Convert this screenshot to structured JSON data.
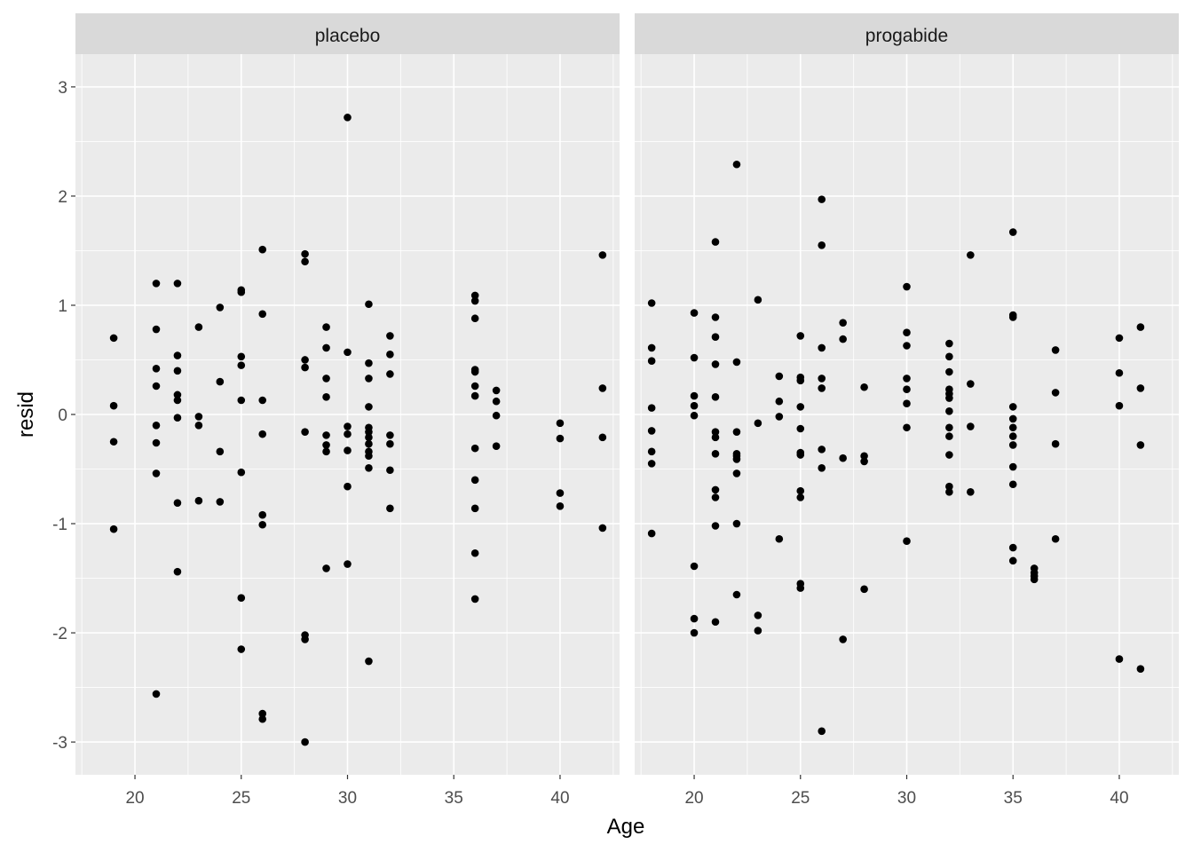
{
  "chart_data": {
    "type": "scatter",
    "facet_by": "treatment",
    "xlabel": "Age",
    "ylabel": "resid",
    "xlim": [
      17.2,
      42.8
    ],
    "ylim": [
      -3.3,
      3.3
    ],
    "x_ticks": [
      20,
      25,
      30,
      35,
      40
    ],
    "y_ticks": [
      -3,
      -2,
      -1,
      0,
      1,
      2,
      3
    ],
    "y_tick_labels": [
      "-3",
      "-2",
      "-1",
      "0",
      "1",
      "2",
      "3"
    ],
    "grid": true,
    "panel_background": "#ebebeb",
    "strip_background": "#d9d9d9",
    "point_color": "#000000",
    "panels": [
      {
        "label": "placebo",
        "points": [
          [
            19,
            0.7
          ],
          [
            19,
            0.08
          ],
          [
            19,
            -0.25
          ],
          [
            19,
            -1.05
          ],
          [
            21,
            1.2
          ],
          [
            21,
            0.78
          ],
          [
            21,
            0.42
          ],
          [
            21,
            0.26
          ],
          [
            21,
            -0.1
          ],
          [
            21,
            -0.26
          ],
          [
            21,
            -0.54
          ],
          [
            21,
            -2.56
          ],
          [
            22,
            1.2
          ],
          [
            22,
            0.54
          ],
          [
            22,
            0.4
          ],
          [
            22,
            0.18
          ],
          [
            22,
            0.13
          ],
          [
            22,
            -0.03
          ],
          [
            22,
            -0.81
          ],
          [
            22,
            -1.44
          ],
          [
            23,
            0.8
          ],
          [
            23,
            -0.02
          ],
          [
            23,
            -0.1
          ],
          [
            23,
            -0.79
          ],
          [
            24,
            0.98
          ],
          [
            24,
            0.3
          ],
          [
            24,
            -0.34
          ],
          [
            24,
            -0.8
          ],
          [
            25,
            1.14
          ],
          [
            25,
            1.12
          ],
          [
            25,
            0.53
          ],
          [
            25,
            0.45
          ],
          [
            25,
            0.13
          ],
          [
            25,
            -0.53
          ],
          [
            25,
            -1.68
          ],
          [
            25,
            -2.15
          ],
          [
            26,
            1.51
          ],
          [
            26,
            0.92
          ],
          [
            26,
            0.13
          ],
          [
            26,
            -0.18
          ],
          [
            26,
            -0.92
          ],
          [
            26,
            -1.01
          ],
          [
            26,
            -2.74
          ],
          [
            26,
            -2.79
          ],
          [
            28,
            1.47
          ],
          [
            28,
            1.4
          ],
          [
            28,
            0.5
          ],
          [
            28,
            0.43
          ],
          [
            28,
            -0.16
          ],
          [
            28,
            -2.02
          ],
          [
            28,
            -2.06
          ],
          [
            28,
            -3.0
          ],
          [
            29,
            0.8
          ],
          [
            29,
            0.61
          ],
          [
            29,
            0.33
          ],
          [
            29,
            0.16
          ],
          [
            29,
            -0.19
          ],
          [
            29,
            -0.28
          ],
          [
            29,
            -0.34
          ],
          [
            29,
            -1.41
          ],
          [
            30,
            2.72
          ],
          [
            30,
            0.57
          ],
          [
            30,
            -0.11
          ],
          [
            30,
            -0.18
          ],
          [
            30,
            -0.33
          ],
          [
            30,
            -0.66
          ],
          [
            30,
            -1.37
          ],
          [
            31,
            1.01
          ],
          [
            31,
            0.47
          ],
          [
            31,
            0.33
          ],
          [
            31,
            0.07
          ],
          [
            31,
            -0.12
          ],
          [
            31,
            -0.16
          ],
          [
            31,
            -0.21
          ],
          [
            31,
            -0.27
          ],
          [
            31,
            -0.34
          ],
          [
            31,
            -0.38
          ],
          [
            31,
            -0.49
          ],
          [
            31,
            -2.26
          ],
          [
            32,
            0.72
          ],
          [
            32,
            0.55
          ],
          [
            32,
            0.37
          ],
          [
            32,
            -0.19
          ],
          [
            32,
            -0.27
          ],
          [
            32,
            -0.51
          ],
          [
            32,
            -0.86
          ],
          [
            36,
            1.09
          ],
          [
            36,
            1.04
          ],
          [
            36,
            0.88
          ],
          [
            36,
            0.41
          ],
          [
            36,
            0.39
          ],
          [
            36,
            0.26
          ],
          [
            36,
            0.17
          ],
          [
            36,
            -0.31
          ],
          [
            36,
            -0.6
          ],
          [
            36,
            -0.86
          ],
          [
            36,
            -1.27
          ],
          [
            36,
            -1.69
          ],
          [
            37,
            0.22
          ],
          [
            37,
            0.12
          ],
          [
            37,
            -0.01
          ],
          [
            37,
            -0.29
          ],
          [
            40,
            -0.08
          ],
          [
            40,
            -0.22
          ],
          [
            40,
            -0.72
          ],
          [
            40,
            -0.84
          ],
          [
            42,
            1.46
          ],
          [
            42,
            0.24
          ],
          [
            42,
            -0.21
          ],
          [
            42,
            -1.04
          ]
        ]
      },
      {
        "label": "progabide",
        "points": [
          [
            18,
            1.02
          ],
          [
            18,
            0.61
          ],
          [
            18,
            0.49
          ],
          [
            18,
            0.06
          ],
          [
            18,
            -0.15
          ],
          [
            18,
            -0.34
          ],
          [
            18,
            -0.45
          ],
          [
            18,
            -1.09
          ],
          [
            20,
            0.93
          ],
          [
            20,
            0.52
          ],
          [
            20,
            0.17
          ],
          [
            20,
            0.08
          ],
          [
            20,
            -0.01
          ],
          [
            20,
            -1.39
          ],
          [
            20,
            -1.87
          ],
          [
            20,
            -2.0
          ],
          [
            21,
            1.58
          ],
          [
            21,
            0.89
          ],
          [
            21,
            0.71
          ],
          [
            21,
            0.46
          ],
          [
            21,
            0.16
          ],
          [
            21,
            -0.16
          ],
          [
            21,
            -0.21
          ],
          [
            21,
            -0.36
          ],
          [
            21,
            -0.69
          ],
          [
            21,
            -0.76
          ],
          [
            21,
            -1.02
          ],
          [
            21,
            -1.9
          ],
          [
            22,
            2.29
          ],
          [
            22,
            0.48
          ],
          [
            22,
            -0.16
          ],
          [
            22,
            -0.36
          ],
          [
            22,
            -0.38
          ],
          [
            22,
            -0.41
          ],
          [
            22,
            -0.54
          ],
          [
            22,
            -1.0
          ],
          [
            22,
            -1.65
          ],
          [
            23,
            1.05
          ],
          [
            23,
            -0.08
          ],
          [
            23,
            -1.84
          ],
          [
            23,
            -1.98
          ],
          [
            24,
            0.35
          ],
          [
            24,
            0.12
          ],
          [
            24,
            -0.02
          ],
          [
            24,
            -1.14
          ],
          [
            25,
            0.72
          ],
          [
            25,
            0.34
          ],
          [
            25,
            0.31
          ],
          [
            25,
            0.07
          ],
          [
            25,
            -0.13
          ],
          [
            25,
            -0.35
          ],
          [
            25,
            -0.37
          ],
          [
            25,
            -0.7
          ],
          [
            25,
            -0.76
          ],
          [
            25,
            -1.55
          ],
          [
            25,
            -1.59
          ],
          [
            26,
            1.97
          ],
          [
            26,
            1.55
          ],
          [
            26,
            0.61
          ],
          [
            26,
            0.33
          ],
          [
            26,
            0.24
          ],
          [
            26,
            -0.32
          ],
          [
            26,
            -0.49
          ],
          [
            26,
            -2.9
          ],
          [
            27,
            0.84
          ],
          [
            27,
            0.69
          ],
          [
            27,
            -0.4
          ],
          [
            27,
            -2.06
          ],
          [
            28,
            0.25
          ],
          [
            28,
            -0.38
          ],
          [
            28,
            -0.43
          ],
          [
            28,
            -1.6
          ],
          [
            30,
            1.17
          ],
          [
            30,
            0.75
          ],
          [
            30,
            0.63
          ],
          [
            30,
            0.33
          ],
          [
            30,
            0.23
          ],
          [
            30,
            0.1
          ],
          [
            30,
            -0.12
          ],
          [
            30,
            -1.16
          ],
          [
            32,
            0.65
          ],
          [
            32,
            0.53
          ],
          [
            32,
            0.39
          ],
          [
            32,
            0.23
          ],
          [
            32,
            0.19
          ],
          [
            32,
            0.15
          ],
          [
            32,
            0.03
          ],
          [
            32,
            -0.12
          ],
          [
            32,
            -0.2
          ],
          [
            32,
            -0.37
          ],
          [
            32,
            -0.66
          ],
          [
            32,
            -0.71
          ],
          [
            33,
            1.46
          ],
          [
            33,
            0.28
          ],
          [
            33,
            -0.11
          ],
          [
            33,
            -0.71
          ],
          [
            35,
            1.67
          ],
          [
            35,
            0.91
          ],
          [
            35,
            0.89
          ],
          [
            35,
            0.07
          ],
          [
            35,
            -0.04
          ],
          [
            35,
            -0.12
          ],
          [
            35,
            -0.2
          ],
          [
            35,
            -0.28
          ],
          [
            35,
            -0.48
          ],
          [
            35,
            -0.64
          ],
          [
            35,
            -1.22
          ],
          [
            35,
            -1.34
          ],
          [
            36,
            -1.41
          ],
          [
            36,
            -1.45
          ],
          [
            36,
            -1.48
          ],
          [
            36,
            -1.51
          ],
          [
            37,
            0.59
          ],
          [
            37,
            0.2
          ],
          [
            37,
            -0.27
          ],
          [
            37,
            -1.14
          ],
          [
            40,
            0.7
          ],
          [
            40,
            0.38
          ],
          [
            40,
            0.08
          ],
          [
            40,
            -2.24
          ],
          [
            41,
            0.8
          ],
          [
            41,
            0.24
          ],
          [
            41,
            -0.28
          ],
          [
            41,
            -2.33
          ]
        ]
      }
    ]
  }
}
